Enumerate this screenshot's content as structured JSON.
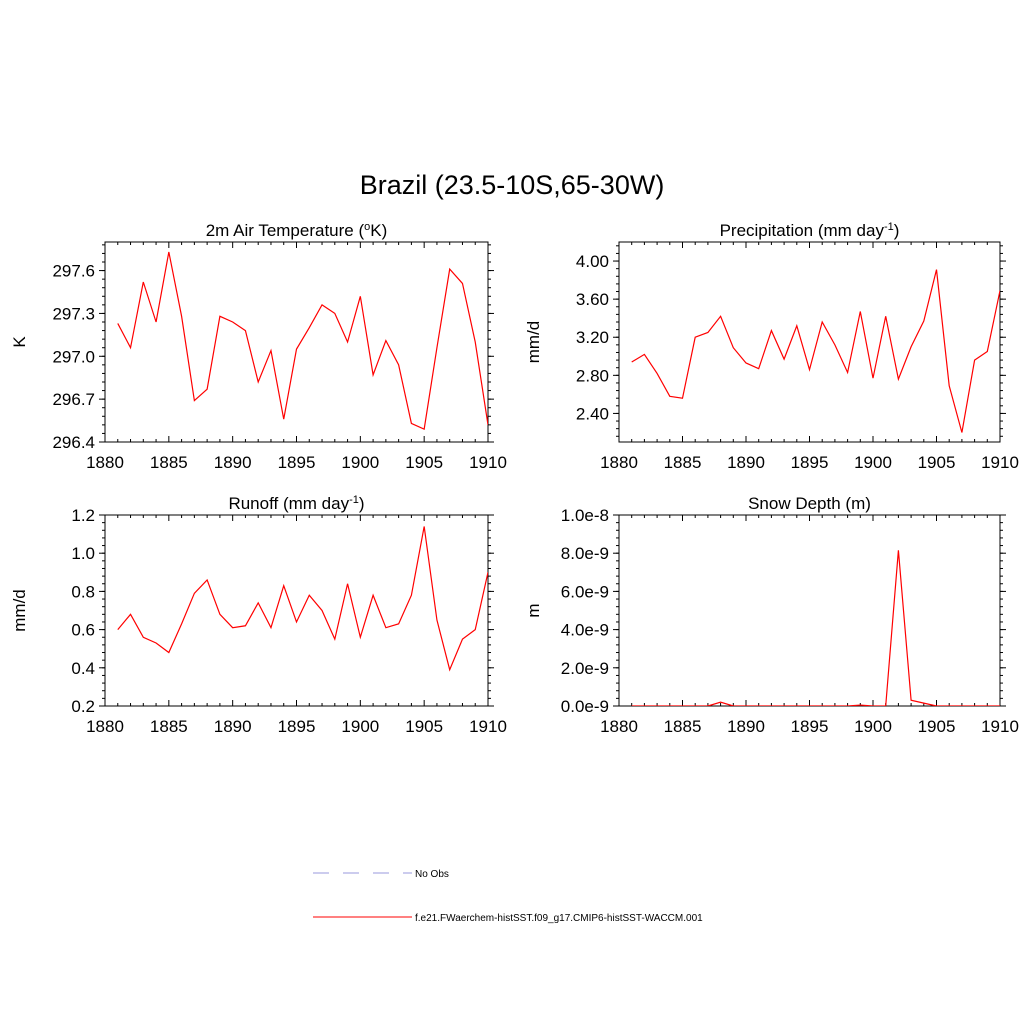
{
  "figure": {
    "title": "Brazil (23.5-10S,65-30W)"
  },
  "legend": {
    "entries": [
      {
        "label": "No Obs",
        "color": "#9999dd",
        "dash": true
      },
      {
        "label": "f.e21.FWaerchem-histSST.f09_g17.CMIP6-histSST-WACCM.001",
        "color": "#ff0000",
        "dash": false
      }
    ]
  },
  "chart_data": [
    {
      "type": "line",
      "title": "2m Air Temperature (",
      "title_sup": "o",
      "title_suffix": "K)",
      "title_suffix_sup": "",
      "title_end": "",
      "ylabel": "K",
      "xlim": [
        1880,
        1910
      ],
      "ylim": [
        296.4,
        297.8
      ],
      "xticks": [
        1880,
        1885,
        1890,
        1895,
        1900,
        1905,
        1910
      ],
      "yticks": [
        296.4,
        296.7,
        297.0,
        297.3,
        297.6
      ],
      "ytick_labels": [
        "296.4",
        "296.7",
        "297.0",
        "297.3",
        "297.6"
      ],
      "series": [
        {
          "color": "#ff0000",
          "x": [
            1881,
            1882,
            1883,
            1884,
            1885,
            1886,
            1887,
            1888,
            1889,
            1890,
            1891,
            1892,
            1893,
            1894,
            1895,
            1896,
            1897,
            1898,
            1899,
            1900,
            1901,
            1902,
            1903,
            1904,
            1905,
            1906,
            1907,
            1908,
            1909,
            1910
          ],
          "y": [
            297.23,
            297.06,
            297.52,
            297.24,
            297.73,
            297.28,
            296.69,
            296.77,
            297.28,
            297.24,
            297.18,
            296.82,
            297.04,
            296.56,
            297.05,
            297.2,
            297.36,
            297.3,
            297.1,
            297.42,
            296.87,
            297.11,
            296.94,
            296.53,
            296.49,
            297.06,
            297.61,
            297.51,
            297.1,
            296.52
          ]
        }
      ]
    },
    {
      "type": "line",
      "title": "Precipitation (mm day",
      "title_sup": "-1",
      "title_suffix": ")",
      "title_suffix_sup": "",
      "title_end": "",
      "ylabel": "mm/d",
      "xlim": [
        1880,
        1910
      ],
      "ylim": [
        2.1,
        4.2
      ],
      "xticks": [
        1880,
        1885,
        1890,
        1895,
        1900,
        1905,
        1910
      ],
      "yticks": [
        2.4,
        2.8,
        3.2,
        3.6,
        4.0
      ],
      "ytick_labels": [
        "2.40",
        "2.80",
        "3.20",
        "3.60",
        "4.00"
      ],
      "series": [
        {
          "color": "#ff0000",
          "x": [
            1881,
            1882,
            1883,
            1884,
            1885,
            1886,
            1887,
            1888,
            1889,
            1890,
            1891,
            1892,
            1893,
            1894,
            1895,
            1896,
            1897,
            1898,
            1899,
            1900,
            1901,
            1902,
            1903,
            1904,
            1905,
            1906,
            1907,
            1908,
            1909,
            1910
          ],
          "y": [
            2.94,
            3.02,
            2.82,
            2.58,
            2.56,
            3.2,
            3.25,
            3.42,
            3.09,
            2.93,
            2.87,
            3.27,
            2.97,
            3.32,
            2.86,
            3.36,
            3.12,
            2.83,
            3.47,
            2.77,
            3.42,
            2.76,
            3.1,
            3.37,
            3.91,
            2.69,
            2.2,
            2.96,
            3.05,
            3.69
          ]
        }
      ]
    },
    {
      "type": "line",
      "title": "Runoff (mm day",
      "title_sup": "-1",
      "title_suffix": ")",
      "title_suffix_sup": "",
      "title_end": "",
      "ylabel": "mm/d",
      "xlim": [
        1880,
        1910
      ],
      "ylim": [
        0.2,
        1.2
      ],
      "xticks": [
        1880,
        1885,
        1890,
        1895,
        1900,
        1905,
        1910
      ],
      "yticks": [
        0.2,
        0.4,
        0.6,
        0.8,
        1.0,
        1.2
      ],
      "ytick_labels": [
        "0.2",
        "0.4",
        "0.6",
        "0.8",
        "1.0",
        "1.2"
      ],
      "series": [
        {
          "color": "#ff0000",
          "x": [
            1881,
            1882,
            1883,
            1884,
            1885,
            1886,
            1887,
            1888,
            1889,
            1890,
            1891,
            1892,
            1893,
            1894,
            1895,
            1896,
            1897,
            1898,
            1899,
            1900,
            1901,
            1902,
            1903,
            1904,
            1905,
            1906,
            1907,
            1908,
            1909,
            1910
          ],
          "y": [
            0.6,
            0.68,
            0.56,
            0.53,
            0.48,
            0.63,
            0.79,
            0.86,
            0.68,
            0.61,
            0.62,
            0.74,
            0.61,
            0.83,
            0.64,
            0.78,
            0.7,
            0.55,
            0.84,
            0.56,
            0.78,
            0.61,
            0.63,
            0.78,
            1.14,
            0.65,
            0.39,
            0.55,
            0.6,
            0.9
          ]
        }
      ]
    },
    {
      "type": "line",
      "title": "Snow Depth (m)",
      "title_sup": "",
      "title_suffix": "",
      "title_suffix_sup": "",
      "title_end": "",
      "ylabel": "m",
      "xlim": [
        1880,
        1910
      ],
      "ylim": [
        0,
        1e-08
      ],
      "xticks": [
        1880,
        1885,
        1890,
        1895,
        1900,
        1905,
        1910
      ],
      "yticks": [
        0,
        2e-09,
        4e-09,
        6e-09,
        8e-09,
        1e-08
      ],
      "ytick_labels": [
        "0.0e-9",
        "2.0e-9",
        "4.0e-9",
        "6.0e-9",
        "8.0e-9",
        "1.0e-8"
      ],
      "series": [
        {
          "color": "#ff0000",
          "x": [
            1881,
            1882,
            1883,
            1884,
            1885,
            1886,
            1887,
            1888,
            1889,
            1890,
            1891,
            1892,
            1893,
            1894,
            1895,
            1896,
            1897,
            1898,
            1899,
            1900,
            1901,
            1902,
            1903,
            1904,
            1905,
            1906,
            1907,
            1908,
            1909,
            1910
          ],
          "y": [
            0,
            0,
            0,
            0,
            0,
            0,
            0,
            2e-10,
            0,
            0,
            0,
            0,
            0,
            0,
            0,
            0,
            0,
            0,
            5e-11,
            0,
            0,
            8.15e-09,
            3e-10,
            1.5e-10,
            0,
            0,
            0,
            0,
            0,
            0
          ]
        }
      ]
    }
  ]
}
